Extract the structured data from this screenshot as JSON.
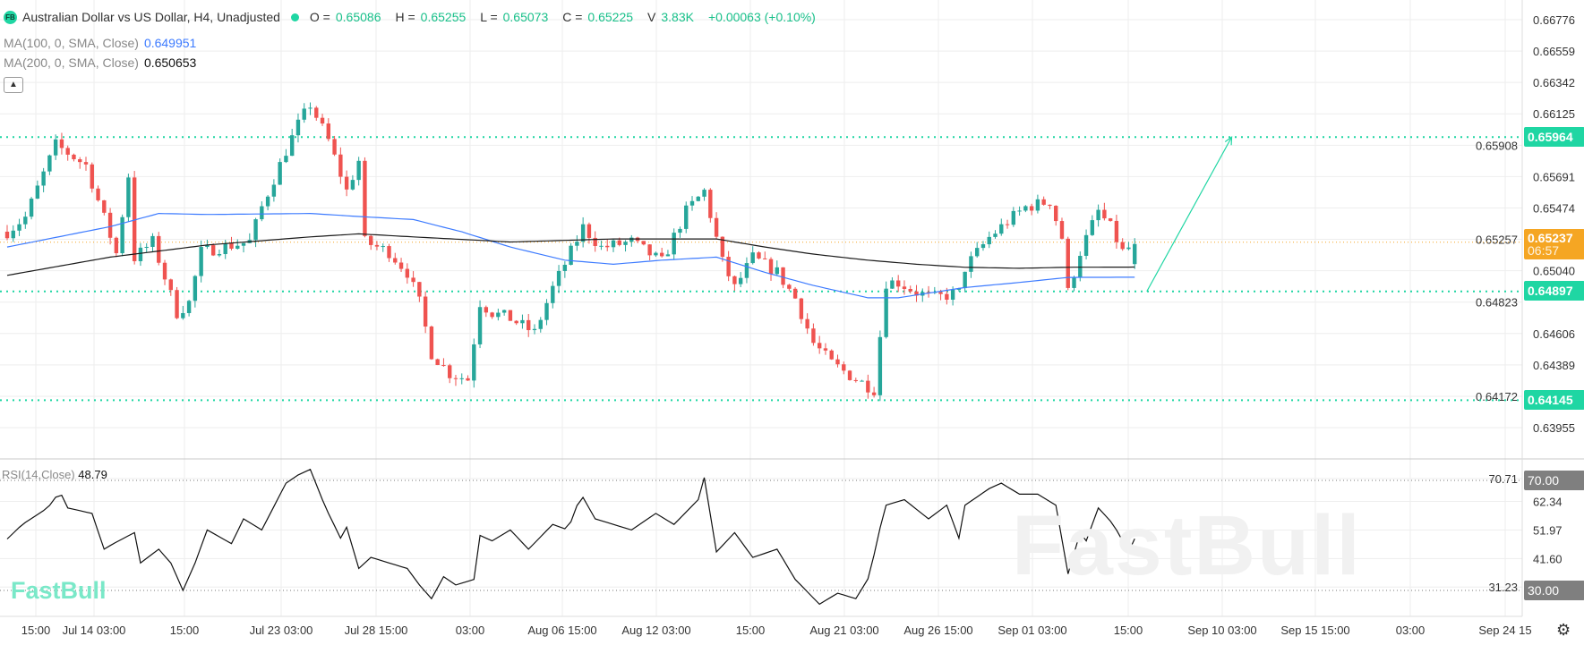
{
  "header": {
    "logo_badge": "FB",
    "title": "Australian Dollar vs US Dollar, H4, Unadjusted",
    "o_label": "O =",
    "o_value": "0.65086",
    "h_label": "H =",
    "h_value": "0.65255",
    "l_label": "L =",
    "l_value": "0.65073",
    "c_label": "C =",
    "c_value": "0.65225",
    "v_label": "V",
    "v_value": "3.83K",
    "change": "+0.00063 (+0.10%)",
    "ma100_label": "MA(100, 0, SMA, Close)",
    "ma100_value": "0.649951",
    "ma200_label": "MA(200, 0, SMA, Close)",
    "ma200_value": "0.650653",
    "collapse_icon": "chevron-up-icon"
  },
  "rsi": {
    "label": "RSI(14,Close)",
    "value": "48.79"
  },
  "tags": {
    "resistance": "0.65964",
    "current_price": "0.65237",
    "countdown": "06:57",
    "support": "0.64897",
    "low": "0.64145",
    "rsi_upper": "70.00",
    "rsi_lower": "30.00"
  },
  "logo": "FastBull",
  "watermark": "FastBull",
  "settings_icon": "gear-icon",
  "colors": {
    "up": "#26a69a",
    "down": "#ef5350",
    "ma100": "#3d7bff",
    "ma200": "#1a1a1a",
    "level": "#1fd6a3",
    "current": "#f5a623",
    "rsi_tag": "#7f7f7f"
  },
  "chart_data": {
    "type": "candlestick",
    "symbol": "AUDUSD H4",
    "price_ticks": [
      "0.66776",
      "0.66559",
      "0.66342",
      "0.66125",
      "0.65908",
      "0.65691",
      "0.65474",
      "0.65257",
      "0.65040",
      "0.64823",
      "0.64606",
      "0.64389",
      "0.64172",
      "0.63955"
    ],
    "ylim": [
      0.63955,
      0.66776
    ],
    "rsi_ticks": [
      "70.71",
      "62.34",
      "51.97",
      "41.60",
      "31.23"
    ],
    "rsi_levels": [
      70,
      30
    ],
    "time_ticks": [
      "15:00",
      "Jul 14 03:00",
      "15:00",
      "Jul 23 03:00",
      "Jul 28 15:00",
      "03:00",
      "Aug 06 15:00",
      "Aug 12 03:00",
      "15:00",
      "Aug 21 03:00",
      "Aug 26 15:00",
      "Sep 01 03:00",
      "15:00",
      "Sep 10 03:00",
      "Sep 15 15:00",
      "03:00",
      "Sep 24 15"
    ],
    "close_path": [
      [
        0,
        0.6531
      ],
      [
        3,
        0.6541
      ],
      [
        8,
        0.6591
      ],
      [
        13,
        0.6577
      ],
      [
        18,
        0.6516
      ],
      [
        20,
        0.657
      ],
      [
        21,
        0.6513
      ],
      [
        24,
        0.6524
      ],
      [
        28,
        0.6475
      ],
      [
        30,
        0.6482
      ],
      [
        32,
        0.6517
      ],
      [
        35,
        0.652
      ],
      [
        40,
        0.6524
      ],
      [
        42,
        0.6548
      ],
      [
        46,
        0.6587
      ],
      [
        48,
        0.6605
      ],
      [
        50,
        0.6619
      ],
      [
        53,
        0.6594
      ],
      [
        56,
        0.6559
      ],
      [
        58,
        0.658
      ],
      [
        59,
        0.6524
      ],
      [
        63,
        0.6517
      ],
      [
        66,
        0.6503
      ],
      [
        68,
        0.6482
      ],
      [
        70,
        0.6447
      ],
      [
        73,
        0.6433
      ],
      [
        76,
        0.6429
      ],
      [
        78,
        0.6482
      ],
      [
        80,
        0.6475
      ],
      [
        83,
        0.6471
      ],
      [
        87,
        0.6461
      ],
      [
        90,
        0.6492
      ],
      [
        93,
        0.6517
      ],
      [
        95,
        0.6534
      ],
      [
        98,
        0.652
      ],
      [
        103,
        0.6524
      ],
      [
        108,
        0.651
      ],
      [
        112,
        0.6545
      ],
      [
        115,
        0.6559
      ],
      [
        118,
        0.651
      ],
      [
        120,
        0.6492
      ],
      [
        123,
        0.6513
      ],
      [
        127,
        0.6503
      ],
      [
        130,
        0.6485
      ],
      [
        133,
        0.6454
      ],
      [
        136,
        0.644
      ],
      [
        140,
        0.6429
      ],
      [
        143,
        0.6422
      ],
      [
        145,
        0.6496
      ],
      [
        147,
        0.6496
      ],
      [
        150,
        0.6489
      ],
      [
        153,
        0.6485
      ],
      [
        157,
        0.6489
      ],
      [
        158,
        0.6506
      ],
      [
        162,
        0.6527
      ],
      [
        165,
        0.6538
      ],
      [
        168,
        0.6548
      ],
      [
        172,
        0.6552
      ],
      [
        174,
        0.6527
      ],
      [
        175,
        0.6489
      ],
      [
        177,
        0.6517
      ],
      [
        180,
        0.6545
      ],
      [
        182,
        0.6534
      ],
      [
        184,
        0.6517
      ],
      [
        186,
        0.65225
      ]
    ],
    "ma100_path": [
      [
        0,
        0.65204
      ],
      [
        17,
        0.65345
      ],
      [
        25,
        0.65436
      ],
      [
        33,
        0.65429
      ],
      [
        50,
        0.65436
      ],
      [
        58,
        0.65415
      ],
      [
        67,
        0.65394
      ],
      [
        75,
        0.65309
      ],
      [
        83,
        0.65204
      ],
      [
        92,
        0.65113
      ],
      [
        100,
        0.65085
      ],
      [
        108,
        0.65113
      ],
      [
        117,
        0.65134
      ],
      [
        125,
        0.65029
      ],
      [
        133,
        0.64938
      ],
      [
        142,
        0.64853
      ],
      [
        147,
        0.64853
      ],
      [
        158,
        0.64924
      ],
      [
        167,
        0.64959
      ],
      [
        175,
        0.64994
      ],
      [
        186,
        0.649951
      ]
    ],
    "ma200_path": [
      [
        0,
        0.65008
      ],
      [
        17,
        0.65134
      ],
      [
        33,
        0.65218
      ],
      [
        50,
        0.65274
      ],
      [
        58,
        0.65295
      ],
      [
        67,
        0.65274
      ],
      [
        83,
        0.65239
      ],
      [
        100,
        0.6526
      ],
      [
        117,
        0.6526
      ],
      [
        125,
        0.65204
      ],
      [
        133,
        0.65155
      ],
      [
        142,
        0.65113
      ],
      [
        150,
        0.65085
      ],
      [
        158,
        0.65064
      ],
      [
        167,
        0.65057
      ],
      [
        175,
        0.65064
      ],
      [
        186,
        0.650653
      ]
    ],
    "rsi_path": [
      [
        0,
        48.7
      ],
      [
        2.5,
        54
      ],
      [
        6.7,
        60
      ],
      [
        8.7,
        66
      ],
      [
        10,
        60
      ],
      [
        14,
        58
      ],
      [
        16,
        45
      ],
      [
        17.5,
        47
      ],
      [
        21,
        51
      ],
      [
        22,
        40
      ],
      [
        25,
        45
      ],
      [
        27,
        40
      ],
      [
        29,
        30
      ],
      [
        31,
        40
      ],
      [
        33,
        52
      ],
      [
        37,
        47
      ],
      [
        39,
        56
      ],
      [
        42,
        52
      ],
      [
        46,
        69
      ],
      [
        48,
        72
      ],
      [
        50,
        74
      ],
      [
        52,
        63
      ],
      [
        53,
        58
      ],
      [
        55,
        49
      ],
      [
        56,
        53
      ],
      [
        58,
        38
      ],
      [
        60,
        42
      ],
      [
        63,
        40
      ],
      [
        66,
        38
      ],
      [
        68,
        32
      ],
      [
        70,
        27
      ],
      [
        72,
        35
      ],
      [
        74,
        32
      ],
      [
        77,
        34
      ],
      [
        78,
        50
      ],
      [
        80,
        48
      ],
      [
        83,
        52
      ],
      [
        86,
        45
      ],
      [
        90,
        54
      ],
      [
        92.5,
        52
      ],
      [
        94.7,
        65
      ],
      [
        97,
        56
      ],
      [
        100,
        54
      ],
      [
        103,
        52
      ],
      [
        107,
        58
      ],
      [
        110,
        54
      ],
      [
        114,
        63
      ],
      [
        115,
        71
      ],
      [
        117,
        44
      ],
      [
        120,
        51
      ],
      [
        123,
        42
      ],
      [
        127,
        45
      ],
      [
        130,
        34
      ],
      [
        134,
        25
      ],
      [
        137,
        29
      ],
      [
        140,
        27
      ],
      [
        142.5,
        36
      ],
      [
        143.3,
        47
      ],
      [
        145,
        61
      ],
      [
        148,
        63
      ],
      [
        152,
        56
      ],
      [
        155,
        61
      ],
      [
        157,
        49
      ],
      [
        158,
        61
      ],
      [
        162,
        67
      ],
      [
        164,
        69
      ],
      [
        167,
        65
      ],
      [
        170,
        65
      ],
      [
        173,
        61
      ],
      [
        175,
        36
      ],
      [
        177,
        51
      ],
      [
        177.5,
        45
      ],
      [
        180,
        60
      ],
      [
        182.5,
        54
      ],
      [
        185,
        44
      ],
      [
        186,
        48.79
      ]
    ],
    "levels": [
      0.65964,
      0.64897,
      0.64145
    ],
    "projection_arrow": [
      [
        188,
        0.64897
      ],
      [
        202,
        0.65964
      ]
    ]
  }
}
